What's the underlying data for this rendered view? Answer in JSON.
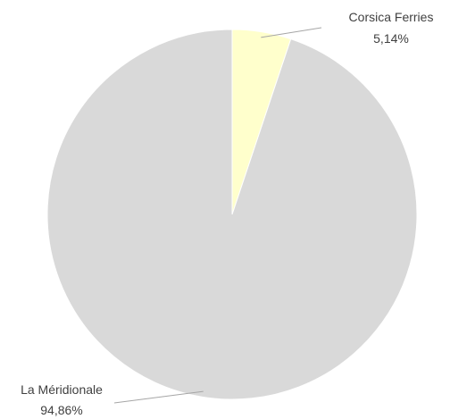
{
  "chart_data": {
    "type": "pie",
    "slices": [
      {
        "label": "Corsica Ferries",
        "value": 5.14,
        "value_text": "5,14%",
        "color": "#FFFFCC"
      },
      {
        "label": "La Méridionale",
        "value": 94.86,
        "value_text": "94,86%",
        "color": "#D9D9D9"
      }
    ],
    "start_angle": "12 o'clock",
    "direction": "clockwise",
    "legend": "none",
    "leader_line_color": "#A6A6A6"
  }
}
